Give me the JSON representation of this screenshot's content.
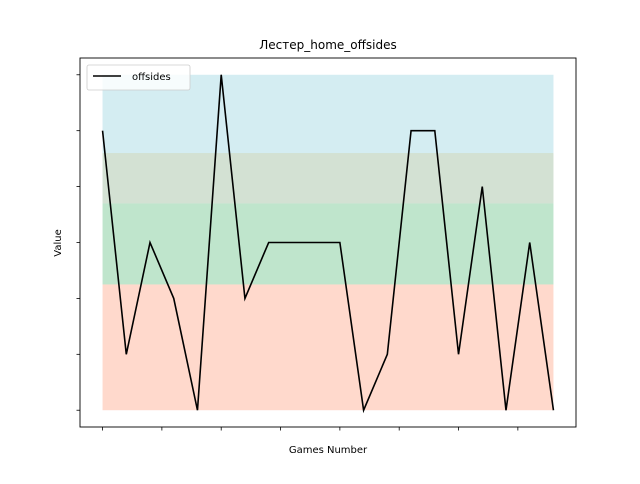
{
  "chart_data": {
    "type": "line",
    "title": "Лестер_home_offsides",
    "xlabel": "Games Number",
    "ylabel": "Value",
    "x": [
      0,
      1,
      2,
      3,
      4,
      5,
      6,
      7,
      8,
      9,
      10,
      11,
      12,
      13,
      14,
      15,
      16,
      17,
      18,
      19
    ],
    "series": [
      {
        "name": "offsides",
        "color": "#000000",
        "values": [
          5,
          1,
          3,
          2,
          0,
          6,
          2,
          3,
          3,
          3,
          3,
          0,
          1,
          5,
          5,
          1,
          4,
          0,
          3,
          0
        ]
      }
    ],
    "xlim": [
      -0.95,
      19.95
    ],
    "ylim": [
      -0.3,
      6.3
    ],
    "x_ticks": [
      0,
      2.5,
      5,
      7.5,
      10,
      12.5,
      15,
      17.5
    ],
    "y_ticks": [
      0,
      1,
      2,
      3,
      4,
      5,
      6
    ],
    "tick_labels_visible": false,
    "bands": [
      {
        "from": 0,
        "to": 2.25,
        "color": "#ffb499",
        "opacity": 0.5
      },
      {
        "from": 2.25,
        "to": 3.7,
        "color": "#80cc99",
        "opacity": 0.5
      },
      {
        "from": 3.7,
        "to": 4.6,
        "color": "#a7c4a7",
        "opacity": 0.5
      },
      {
        "from": 4.6,
        "to": 6,
        "color": "#aadbe6",
        "opacity": 0.5
      }
    ],
    "grid": false,
    "legend_position": "top-left"
  }
}
